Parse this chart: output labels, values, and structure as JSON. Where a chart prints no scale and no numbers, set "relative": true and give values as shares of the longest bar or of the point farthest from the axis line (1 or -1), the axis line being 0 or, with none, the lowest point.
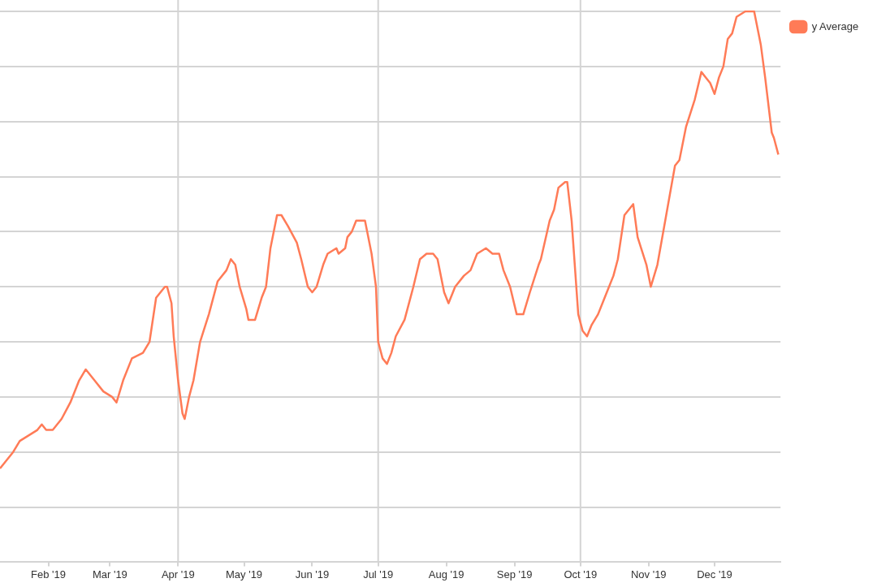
{
  "chart_data": {
    "type": "line",
    "relative": true,
    "grid": "y",
    "legend": "top right",
    "marker": "none",
    "line_style": "solid",
    "xlim": [
      "2019-01-10",
      "2019-12-31"
    ],
    "xticks": [
      {
        "value": "2019-02-01",
        "label": "Feb '19"
      },
      {
        "value": "2019-03-01",
        "label": "Mar '19"
      },
      {
        "value": "2019-04-01",
        "label": "Apr '19"
      },
      {
        "value": "2019-05-01",
        "label": "May '19"
      },
      {
        "value": "2019-06-01",
        "label": "Jun '19"
      },
      {
        "value": "2019-07-01",
        "label": "Jul '19"
      },
      {
        "value": "2019-08-01",
        "label": "Aug '19"
      },
      {
        "value": "2019-09-01",
        "label": "Sep '19"
      },
      {
        "value": "2019-10-01",
        "label": "Oct '19"
      },
      {
        "value": "2019-11-01",
        "label": "Nov '19"
      },
      {
        "value": "2019-12-01",
        "label": "Dec '19"
      }
    ],
    "ref_lines": [
      {
        "axis": "x",
        "value": "2019-04-01",
        "color": "#d4d4d4"
      },
      {
        "axis": "x",
        "value": "2019-07-01",
        "color": "#d4d4d4"
      },
      {
        "axis": "x",
        "value": "2019-10-01",
        "color": "#d4d4d4"
      }
    ],
    "x": [
      "2019-01-10",
      "2019-01-12",
      "2019-01-16",
      "2019-01-19",
      "2019-01-23",
      "2019-01-27",
      "2019-01-29",
      "2019-01-31",
      "2019-02-03",
      "2019-02-07",
      "2019-02-11",
      "2019-02-15",
      "2019-02-18",
      "2019-02-22",
      "2019-02-26",
      "2019-03-02",
      "2019-03-04",
      "2019-03-07",
      "2019-03-11",
      "2019-03-16",
      "2019-03-19",
      "2019-03-22",
      "2019-03-26",
      "2019-03-27",
      "2019-03-29",
      "2019-03-30",
      "2019-04-01",
      "2019-04-03",
      "2019-04-04",
      "2019-04-06",
      "2019-04-08",
      "2019-04-11",
      "2019-04-15",
      "2019-04-19",
      "2019-04-23",
      "2019-04-25",
      "2019-04-27",
      "2019-04-29",
      "2019-05-02",
      "2019-05-03",
      "2019-05-05",
      "2019-05-06",
      "2019-05-09",
      "2019-05-11",
      "2019-05-13",
      "2019-05-16",
      "2019-05-18",
      "2019-05-21",
      "2019-05-25",
      "2019-05-27",
      "2019-05-30",
      "2019-06-01",
      "2019-06-03",
      "2019-06-06",
      "2019-06-08",
      "2019-06-12",
      "2019-06-13",
      "2019-06-16",
      "2019-06-17",
      "2019-06-19",
      "2019-06-21",
      "2019-06-23",
      "2019-06-25",
      "2019-06-26",
      "2019-06-28",
      "2019-06-30",
      "2019-07-01",
      "2019-07-03",
      "2019-07-05",
      "2019-07-07",
      "2019-07-09",
      "2019-07-13",
      "2019-07-17",
      "2019-07-20",
      "2019-07-23",
      "2019-07-26",
      "2019-07-28",
      "2019-07-31",
      "2019-08-02",
      "2019-08-05",
      "2019-08-09",
      "2019-08-12",
      "2019-08-15",
      "2019-08-19",
      "2019-08-22",
      "2019-08-25",
      "2019-08-27",
      "2019-08-30",
      "2019-09-02",
      "2019-09-05",
      "2019-09-08",
      "2019-09-12",
      "2019-09-13",
      "2019-09-17",
      "2019-09-19",
      "2019-09-21",
      "2019-09-24",
      "2019-09-25",
      "2019-09-27",
      "2019-09-30",
      "2019-10-02",
      "2019-10-04",
      "2019-10-06",
      "2019-10-09",
      "2019-10-12",
      "2019-10-16",
      "2019-10-18",
      "2019-10-21",
      "2019-10-23",
      "2019-10-25",
      "2019-10-27",
      "2019-10-31",
      "2019-11-02",
      "2019-11-05",
      "2019-11-09",
      "2019-11-13",
      "2019-11-15",
      "2019-11-18",
      "2019-11-22",
      "2019-11-25",
      "2019-11-27",
      "2019-11-29",
      "2019-12-01",
      "2019-12-03",
      "2019-12-05",
      "2019-12-07",
      "2019-12-09",
      "2019-12-11",
      "2019-12-15",
      "2019-12-18",
      "2019-12-19",
      "2019-12-22",
      "2019-12-24",
      "2019-12-27",
      "2019-12-28",
      "2019-12-30"
    ],
    "series": [
      {
        "name": "y Average",
        "color": "#ff7b57",
        "values": [
          0.17,
          0.18,
          0.2,
          0.22,
          0.23,
          0.24,
          0.25,
          0.24,
          0.24,
          0.26,
          0.29,
          0.33,
          0.35,
          0.33,
          0.31,
          0.3,
          0.29,
          0.33,
          0.37,
          0.38,
          0.4,
          0.48,
          0.5,
          0.5,
          0.47,
          0.41,
          0.33,
          0.27,
          0.26,
          0.3,
          0.33,
          0.4,
          0.45,
          0.51,
          0.53,
          0.55,
          0.54,
          0.5,
          0.46,
          0.44,
          0.44,
          0.44,
          0.48,
          0.5,
          0.57,
          0.63,
          0.63,
          0.61,
          0.58,
          0.55,
          0.5,
          0.49,
          0.5,
          0.54,
          0.56,
          0.57,
          0.56,
          0.57,
          0.59,
          0.6,
          0.62,
          0.62,
          0.62,
          0.6,
          0.56,
          0.5,
          0.4,
          0.37,
          0.36,
          0.38,
          0.41,
          0.44,
          0.5,
          0.55,
          0.56,
          0.56,
          0.55,
          0.49,
          0.47,
          0.5,
          0.52,
          0.53,
          0.56,
          0.57,
          0.56,
          0.56,
          0.53,
          0.5,
          0.45,
          0.45,
          0.49,
          0.54,
          0.55,
          0.62,
          0.64,
          0.68,
          0.69,
          0.69,
          0.62,
          0.45,
          0.42,
          0.41,
          0.43,
          0.45,
          0.48,
          0.52,
          0.55,
          0.63,
          0.64,
          0.65,
          0.59,
          0.54,
          0.5,
          0.54,
          0.63,
          0.72,
          0.73,
          0.79,
          0.84,
          0.89,
          0.88,
          0.87,
          0.85,
          0.88,
          0.9,
          0.95,
          0.96,
          0.99,
          1.0,
          1.0,
          1.0,
          0.94,
          0.88,
          0.78,
          0.77,
          0.74
        ]
      }
    ]
  }
}
